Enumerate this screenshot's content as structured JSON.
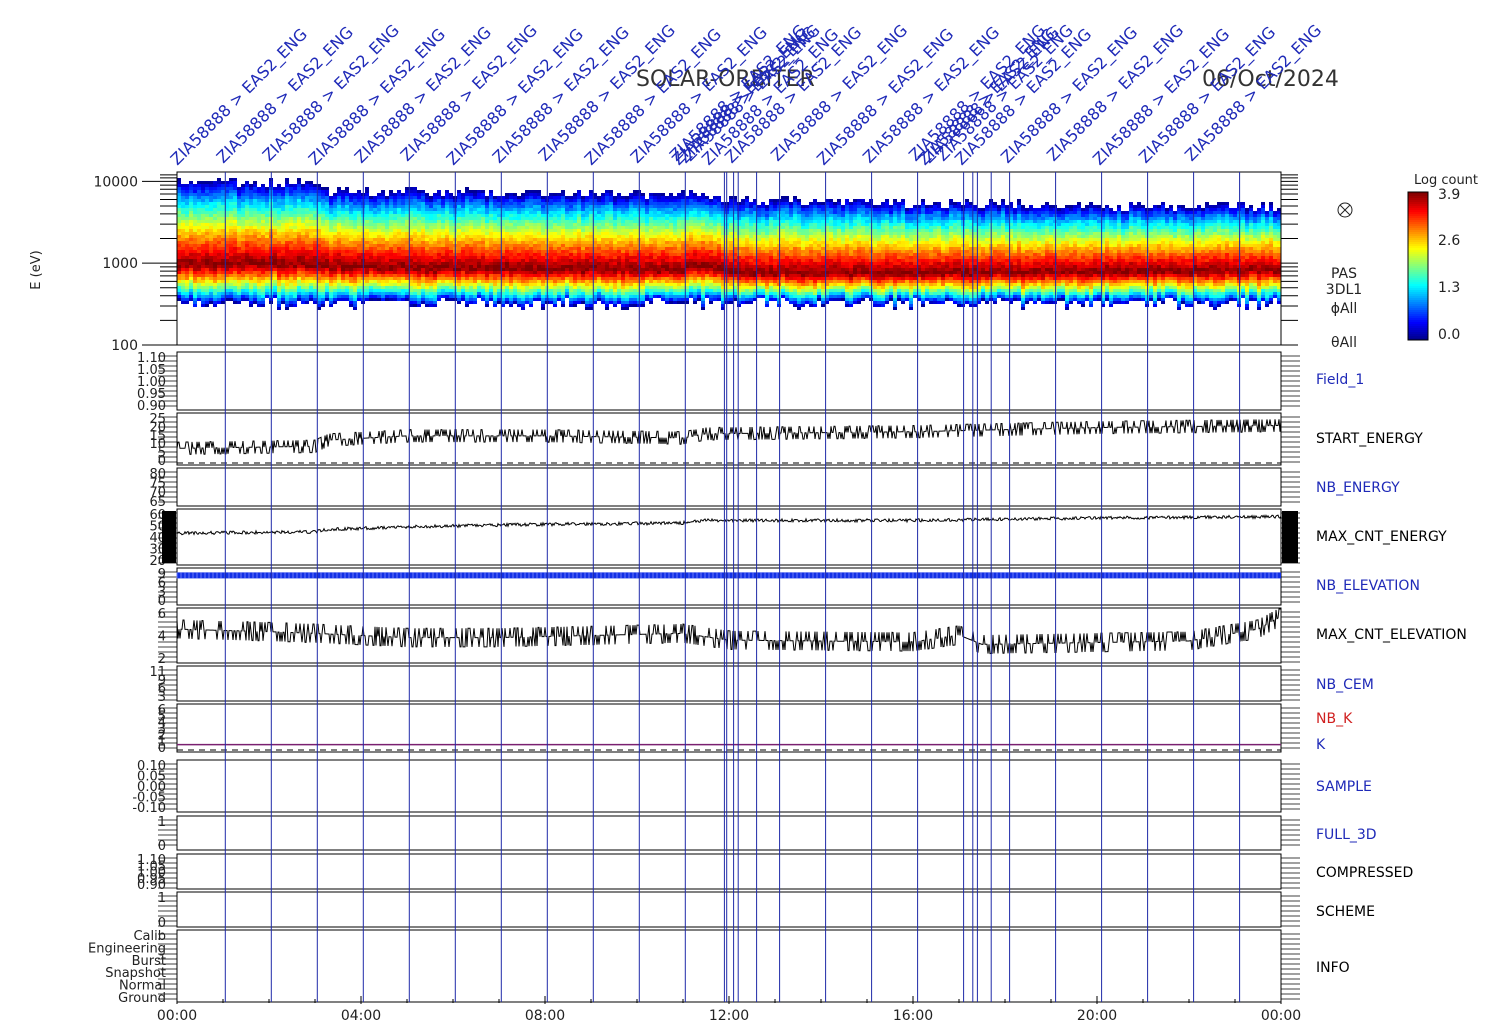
{
  "header": {
    "mission": "SOLAR-ORBITER",
    "date": "06/Oct/2024"
  },
  "command_labels": {
    "text": "ZIA58888 > EAS2_ENG",
    "note": "Command annotation labels repeated along the top, each tied to a vertical marker line"
  },
  "colors": {
    "marker_line": "#1f2aa8",
    "label_blue": "#1f2ab8",
    "label_red": "#d02020",
    "trace_black": "#000000",
    "nb_elevation": "#1230e6",
    "k_line": "#7a2070"
  },
  "chart_data": {
    "type": "heatmap",
    "x_axis": {
      "range_hours": [
        0,
        24
      ],
      "ticks": [
        "00:00",
        "04:00",
        "08:00",
        "12:00",
        "16:00",
        "20:00",
        "00:00"
      ]
    },
    "marker_hours": [
      1.05,
      2.05,
      3.05,
      4.05,
      5.05,
      6.05,
      7.05,
      8.05,
      9.05,
      10.05,
      11.05,
      11.9,
      11.95,
      12.1,
      12.2,
      12.6,
      13.1,
      14.1,
      15.1,
      16.1,
      17.1,
      17.3,
      17.4,
      17.7,
      18.1,
      19.1,
      20.1,
      21.1,
      22.1,
      23.1
    ],
    "spectrogram": {
      "ylabel": "E (eV)",
      "y_ticks": [
        "10000",
        "1000",
        "100"
      ],
      "ylim": [
        100,
        13000
      ],
      "colorbar": {
        "title": "Log count",
        "ticks": [
          "3.9",
          "2.6",
          "1.3",
          "0.0"
        ],
        "range": [
          0,
          3.9
        ]
      },
      "side_labels": [
        "PAS",
        "3DL1",
        "ϕAll",
        "θAll"
      ],
      "peak_energy_ev": [
        [
          0,
          1000
        ],
        [
          3,
          1000
        ],
        [
          3.2,
          950
        ],
        [
          5,
          900
        ],
        [
          8,
          880
        ],
        [
          11,
          850
        ],
        [
          11.2,
          1000
        ],
        [
          11.6,
          900
        ],
        [
          12,
          780
        ],
        [
          16,
          780
        ],
        [
          20,
          800
        ],
        [
          22,
          820
        ],
        [
          24,
          860
        ]
      ],
      "upper_cutoff_ev": [
        [
          0,
          10500
        ],
        [
          3,
          10000
        ],
        [
          3.2,
          8000
        ],
        [
          11,
          7200
        ],
        [
          12,
          6200
        ],
        [
          20,
          5200
        ],
        [
          24,
          5200
        ]
      ]
    },
    "panels": [
      {
        "name": "Field_1",
        "label_color": "blue",
        "ticks": [
          "1.10",
          "1.05",
          "1.00",
          "0.95",
          "0.90"
        ],
        "series": []
      },
      {
        "name": "START_ENERGY",
        "label_color": "black",
        "ticks": [
          "25",
          "20",
          "15",
          "10",
          "5",
          "0"
        ],
        "ylim": [
          0,
          25
        ],
        "series": [
          [
            0,
            8
          ],
          [
            3,
            9
          ],
          [
            3.3,
            12
          ],
          [
            5,
            14
          ],
          [
            8,
            14
          ],
          [
            11,
            13
          ],
          [
            11.5,
            15
          ],
          [
            16,
            16
          ],
          [
            20,
            18
          ],
          [
            24,
            19
          ]
        ],
        "dashed_zero": true
      },
      {
        "name": "NB_ENERGY",
        "label_color": "blue",
        "ticks": [
          "80",
          "75",
          "70",
          "65"
        ],
        "series": []
      },
      {
        "name": "MAX_CNT_ENERGY",
        "label_color": "black",
        "ticks": [
          "60",
          "50",
          "40",
          "30",
          "20"
        ],
        "ylim": [
          20,
          64
        ],
        "series": [
          [
            0,
            45
          ],
          [
            3,
            46
          ],
          [
            3.3,
            48
          ],
          [
            5,
            50
          ],
          [
            8,
            52
          ],
          [
            11,
            53
          ],
          [
            11.5,
            55
          ],
          [
            16,
            55
          ],
          [
            20,
            57
          ],
          [
            24,
            58
          ]
        ]
      },
      {
        "name": "NB_ELEVATION",
        "label_color": "blue",
        "ticks": [
          "9",
          "6",
          "3",
          "0"
        ],
        "ylim": [
          0,
          10
        ],
        "constant": 8
      },
      {
        "name": "MAX_CNT_ELEVATION",
        "label_color": "black",
        "ticks": [
          "6",
          "4",
          "2"
        ],
        "ylim": [
          0.5,
          7
        ],
        "series": [
          [
            0,
            4.5
          ],
          [
            2,
            4.2
          ],
          [
            3,
            4.0
          ],
          [
            5,
            3.5
          ],
          [
            7,
            3.5
          ],
          [
            11,
            4.0
          ],
          [
            12,
            3.2
          ],
          [
            16,
            3.0
          ],
          [
            17,
            3.8
          ],
          [
            17.5,
            2.7
          ],
          [
            22,
            3.1
          ],
          [
            23.5,
            4.5
          ],
          [
            24,
            6.0
          ]
        ]
      },
      {
        "name": "NB_CEM",
        "label_color": "blue",
        "ticks": [
          "11",
          "9",
          "6",
          "3"
        ],
        "series": []
      },
      {
        "name": "NB_K",
        "label_color": "red",
        "ticks": [
          "6",
          "5",
          "4",
          "3",
          "2",
          "1",
          "0"
        ],
        "ylim": [
          0,
          6.5
        ],
        "k_level": 1,
        "dashed_zero": true
      },
      {
        "name": "K",
        "label_color": "blue",
        "ticks": [],
        "series": []
      },
      {
        "name": "SAMPLE",
        "label_color": "blue",
        "ticks": [
          "0.10",
          "0.05",
          "0.00",
          "-0.05",
          "-0.10"
        ],
        "series": []
      },
      {
        "name": "FULL_3D",
        "label_color": "blue",
        "ticks": [
          "1",
          "0"
        ],
        "series": []
      },
      {
        "name": "COMPRESSED",
        "label_color": "black",
        "ticks": [
          "1.10",
          "1.05",
          "1.00",
          "0.95",
          "0.90"
        ],
        "series": []
      },
      {
        "name": "SCHEME",
        "label_color": "black",
        "ticks": [
          "1",
          "0"
        ],
        "series": []
      },
      {
        "name": "INFO",
        "label_color": "black",
        "ticks": [
          "Calib",
          "Engineering",
          "Burst",
          "Snapshot",
          "Normal",
          "Ground"
        ],
        "series": []
      }
    ]
  }
}
